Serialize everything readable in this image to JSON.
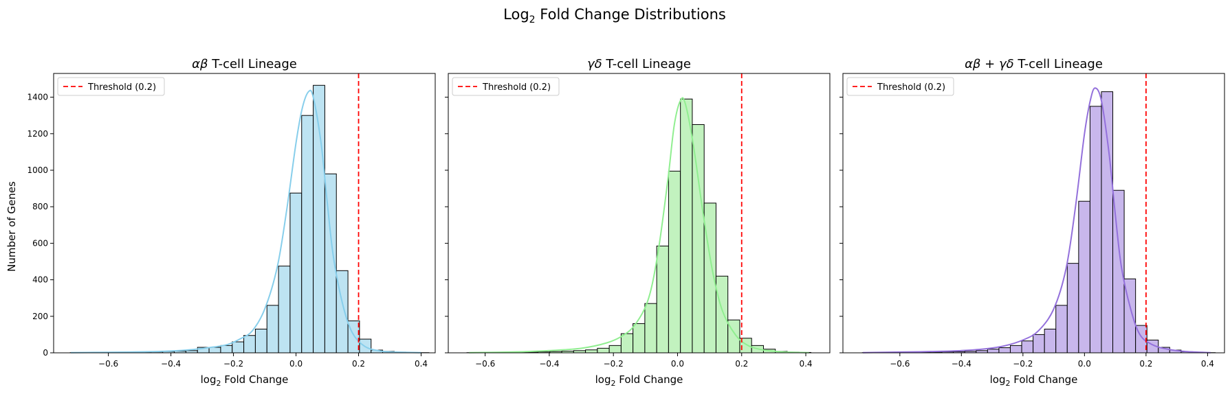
{
  "figure": {
    "title_main": "Log",
    "title_sub": "2",
    "title_rest": " Fold Change Distributions",
    "threshold_color": "#ff0000",
    "ylabel": "Number of Genes"
  },
  "chart_data": [
    {
      "type": "bar",
      "title_parts": [
        {
          "t": "αβ",
          "italic": true
        },
        {
          "t": " T-cell Lineage",
          "italic": false
        }
      ],
      "xlabel": "log|2| Fold Change",
      "ylabel": "Number of Genes",
      "xlim": [
        -0.775,
        0.445
      ],
      "ylim": [
        0,
        1530
      ],
      "xticks": [
        -0.6,
        -0.4,
        -0.2,
        0.0,
        0.2,
        0.4
      ],
      "xtick_labels": [
        "−0.6",
        "−0.4",
        "−0.2",
        "0.0",
        "0.2",
        "0.4"
      ],
      "yticks": [
        0,
        200,
        400,
        600,
        800,
        1000,
        1200,
        1400
      ],
      "threshold": 0.2,
      "legend": "Threshold (0.2)",
      "legend_placement": "top-left",
      "fill_color": "#bde3f2",
      "kde_color": "#87ceeb",
      "bin_width": 0.037,
      "bins": [
        {
          "x": -0.722,
          "v": 1
        },
        {
          "x": -0.685,
          "v": 1
        },
        {
          "x": -0.648,
          "v": 1
        },
        {
          "x": -0.611,
          "v": 2
        },
        {
          "x": -0.574,
          "v": 2
        },
        {
          "x": -0.537,
          "v": 3
        },
        {
          "x": -0.5,
          "v": 4
        },
        {
          "x": -0.463,
          "v": 5
        },
        {
          "x": -0.426,
          "v": 7
        },
        {
          "x": -0.389,
          "v": 9
        },
        {
          "x": -0.352,
          "v": 12
        },
        {
          "x": -0.315,
          "v": 30
        },
        {
          "x": -0.278,
          "v": 30
        },
        {
          "x": -0.241,
          "v": 40
        },
        {
          "x": -0.204,
          "v": 60
        },
        {
          "x": -0.167,
          "v": 95
        },
        {
          "x": -0.13,
          "v": 130
        },
        {
          "x": -0.093,
          "v": 260
        },
        {
          "x": -0.056,
          "v": 475
        },
        {
          "x": -0.019,
          "v": 875
        },
        {
          "x": 0.018,
          "v": 1300
        },
        {
          "x": 0.055,
          "v": 1465
        },
        {
          "x": 0.092,
          "v": 980
        },
        {
          "x": 0.129,
          "v": 450
        },
        {
          "x": 0.166,
          "v": 175
        },
        {
          "x": 0.203,
          "v": 75
        },
        {
          "x": 0.24,
          "v": 15
        },
        {
          "x": 0.277,
          "v": 8
        },
        {
          "x": 0.314,
          "v": 4
        },
        {
          "x": 0.351,
          "v": 2
        },
        {
          "x": 0.388,
          "v": 1
        }
      ],
      "kde": [
        [
          -0.72,
          1
        ],
        [
          -0.6,
          3
        ],
        [
          -0.5,
          5
        ],
        [
          -0.4,
          10
        ],
        [
          -0.33,
          18
        ],
        [
          -0.28,
          28
        ],
        [
          -0.22,
          45
        ],
        [
          -0.18,
          75
        ],
        [
          -0.14,
          120
        ],
        [
          -0.1,
          240
        ],
        [
          -0.06,
          470
        ],
        [
          -0.03,
          780
        ],
        [
          0.0,
          1150
        ],
        [
          0.02,
          1340
        ],
        [
          0.04,
          1430
        ],
        [
          0.055,
          1400
        ],
        [
          0.08,
          1150
        ],
        [
          0.1,
          820
        ],
        [
          0.12,
          520
        ],
        [
          0.15,
          260
        ],
        [
          0.18,
          110
        ],
        [
          0.22,
          35
        ],
        [
          0.27,
          10
        ],
        [
          0.32,
          4
        ],
        [
          0.4,
          1
        ]
      ]
    },
    {
      "type": "bar",
      "title_parts": [
        {
          "t": "γδ",
          "italic": true
        },
        {
          "t": " T-cell Lineage",
          "italic": false
        }
      ],
      "xlabel": "log|2| Fold Change",
      "ylabel": "",
      "xlim": [
        -0.715,
        0.475
      ],
      "ylim": [
        0,
        1530
      ],
      "xticks": [
        -0.6,
        -0.4,
        -0.2,
        0.0,
        0.2,
        0.4
      ],
      "xtick_labels": [
        "−0.6",
        "−0.4",
        "−0.2",
        "0.0",
        "0.2",
        "0.4"
      ],
      "yticks": [
        0,
        200,
        400,
        600,
        800,
        1000,
        1200,
        1400
      ],
      "threshold": 0.2,
      "legend": "Threshold (0.2)",
      "legend_placement": "top-left",
      "fill_color": "#c2f2bf",
      "kde_color": "#90ee90",
      "bin_width": 0.037,
      "bins": [
        {
          "x": -0.657,
          "v": 1
        },
        {
          "x": -0.62,
          "v": 1
        },
        {
          "x": -0.583,
          "v": 2
        },
        {
          "x": -0.546,
          "v": 2
        },
        {
          "x": -0.509,
          "v": 3
        },
        {
          "x": -0.472,
          "v": 4
        },
        {
          "x": -0.435,
          "v": 5
        },
        {
          "x": -0.398,
          "v": 7
        },
        {
          "x": -0.361,
          "v": 9
        },
        {
          "x": -0.324,
          "v": 12
        },
        {
          "x": -0.287,
          "v": 16
        },
        {
          "x": -0.25,
          "v": 25
        },
        {
          "x": -0.213,
          "v": 40
        },
        {
          "x": -0.176,
          "v": 105
        },
        {
          "x": -0.139,
          "v": 160
        },
        {
          "x": -0.102,
          "v": 270
        },
        {
          "x": -0.065,
          "v": 585
        },
        {
          "x": -0.028,
          "v": 995
        },
        {
          "x": 0.009,
          "v": 1390
        },
        {
          "x": 0.046,
          "v": 1250
        },
        {
          "x": 0.083,
          "v": 820
        },
        {
          "x": 0.12,
          "v": 420
        },
        {
          "x": 0.157,
          "v": 180
        },
        {
          "x": 0.194,
          "v": 80
        },
        {
          "x": 0.231,
          "v": 40
        },
        {
          "x": 0.268,
          "v": 20
        },
        {
          "x": 0.305,
          "v": 8
        },
        {
          "x": 0.342,
          "v": 4
        },
        {
          "x": 0.379,
          "v": 2
        }
      ],
      "kde": [
        [
          -0.65,
          1
        ],
        [
          -0.5,
          5
        ],
        [
          -0.4,
          12
        ],
        [
          -0.3,
          25
        ],
        [
          -0.22,
          55
        ],
        [
          -0.17,
          95
        ],
        [
          -0.13,
          160
        ],
        [
          -0.09,
          300
        ],
        [
          -0.06,
          560
        ],
        [
          -0.03,
          950
        ],
        [
          -0.01,
          1250
        ],
        [
          0.01,
          1385
        ],
        [
          0.025,
          1360
        ],
        [
          0.05,
          1130
        ],
        [
          0.08,
          760
        ],
        [
          0.11,
          440
        ],
        [
          0.14,
          230
        ],
        [
          0.18,
          100
        ],
        [
          0.22,
          40
        ],
        [
          0.27,
          15
        ],
        [
          0.33,
          5
        ],
        [
          0.41,
          1
        ]
      ]
    },
    {
      "type": "bar",
      "title_parts": [
        {
          "t": "αβ",
          "italic": true
        },
        {
          "t": " + ",
          "italic": false
        },
        {
          "t": "γδ",
          "italic": true
        },
        {
          "t": " T-cell Lineage",
          "italic": false
        }
      ],
      "xlabel": "log|2| Fold Change",
      "ylabel": "",
      "xlim": [
        -0.785,
        0.455
      ],
      "ylim": [
        0,
        1530
      ],
      "xticks": [
        -0.6,
        -0.4,
        -0.2,
        0.0,
        0.2,
        0.4
      ],
      "xtick_labels": [
        "−0.6",
        "−0.4",
        "−0.2",
        "0.0",
        "0.2",
        "0.4"
      ],
      "yticks": [
        0,
        200,
        400,
        600,
        800,
        1000,
        1200,
        1400
      ],
      "threshold": 0.2,
      "legend": "Threshold (0.2)",
      "legend_placement": "top-left",
      "fill_color": "#c8b7ec",
      "kde_color": "#9370db",
      "bin_width": 0.037,
      "bins": [
        {
          "x": -0.722,
          "v": 1
        },
        {
          "x": -0.685,
          "v": 1
        },
        {
          "x": -0.648,
          "v": 2
        },
        {
          "x": -0.611,
          "v": 2
        },
        {
          "x": -0.574,
          "v": 3
        },
        {
          "x": -0.537,
          "v": 3
        },
        {
          "x": -0.5,
          "v": 4
        },
        {
          "x": -0.463,
          "v": 5
        },
        {
          "x": -0.426,
          "v": 6
        },
        {
          "x": -0.389,
          "v": 8
        },
        {
          "x": -0.352,
          "v": 12
        },
        {
          "x": -0.315,
          "v": 20
        },
        {
          "x": -0.278,
          "v": 28
        },
        {
          "x": -0.241,
          "v": 40
        },
        {
          "x": -0.204,
          "v": 65
        },
        {
          "x": -0.167,
          "v": 100
        },
        {
          "x": -0.13,
          "v": 130
        },
        {
          "x": -0.093,
          "v": 260
        },
        {
          "x": -0.056,
          "v": 490
        },
        {
          "x": -0.019,
          "v": 830
        },
        {
          "x": 0.018,
          "v": 1350
        },
        {
          "x": 0.055,
          "v": 1430
        },
        {
          "x": 0.092,
          "v": 890
        },
        {
          "x": 0.129,
          "v": 405
        },
        {
          "x": 0.166,
          "v": 150
        },
        {
          "x": 0.203,
          "v": 70
        },
        {
          "x": 0.24,
          "v": 30
        },
        {
          "x": 0.277,
          "v": 15
        },
        {
          "x": 0.314,
          "v": 6
        },
        {
          "x": 0.351,
          "v": 3
        },
        {
          "x": 0.388,
          "v": 1
        }
      ],
      "kde": [
        [
          -0.72,
          1
        ],
        [
          -0.6,
          4
        ],
        [
          -0.5,
          7
        ],
        [
          -0.4,
          12
        ],
        [
          -0.32,
          22
        ],
        [
          -0.26,
          38
        ],
        [
          -0.2,
          70
        ],
        [
          -0.15,
          120
        ],
        [
          -0.1,
          240
        ],
        [
          -0.06,
          460
        ],
        [
          -0.03,
          790
        ],
        [
          0.0,
          1200
        ],
        [
          0.02,
          1390
        ],
        [
          0.035,
          1450
        ],
        [
          0.055,
          1380
        ],
        [
          0.08,
          1090
        ],
        [
          0.1,
          760
        ],
        [
          0.12,
          470
        ],
        [
          0.15,
          240
        ],
        [
          0.18,
          100
        ],
        [
          0.22,
          45
        ],
        [
          0.27,
          20
        ],
        [
          0.33,
          7
        ],
        [
          0.41,
          1
        ]
      ]
    }
  ]
}
